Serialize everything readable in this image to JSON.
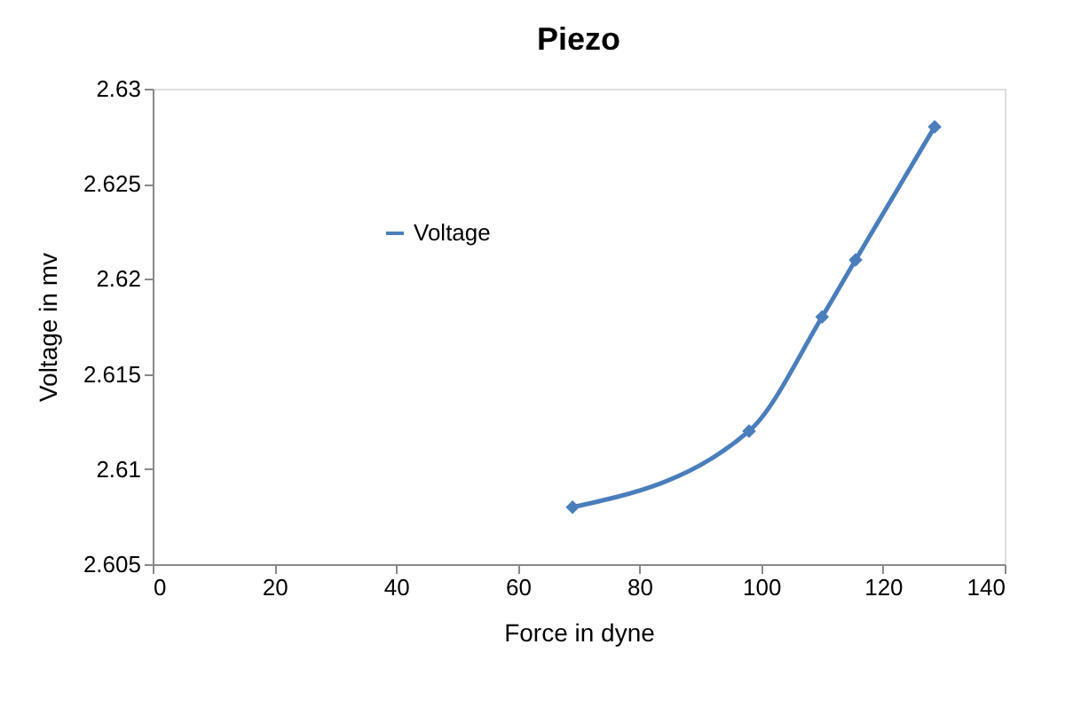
{
  "chart_data": {
    "type": "line",
    "title": "Piezo",
    "xlabel": "Force in dyne",
    "ylabel": "Voltage in mv",
    "series": [
      {
        "name": "Voltage",
        "color": "#4a7ebb",
        "x": [
          69,
          98,
          110,
          115.5,
          128.5
        ],
        "values": [
          2.608,
          2.612,
          2.618,
          2.621,
          2.628
        ]
      }
    ],
    "xlim": [
      0,
      140
    ],
    "xticks": [
      0,
      20,
      40,
      60,
      80,
      100,
      120,
      140
    ],
    "ylim": [
      2.605,
      2.63
    ],
    "yticks": [
      2.605,
      2.61,
      2.615,
      2.62,
      2.625,
      2.63
    ],
    "grid": false,
    "legend": "left",
    "marker": "diamond",
    "line_style": "solid"
  }
}
